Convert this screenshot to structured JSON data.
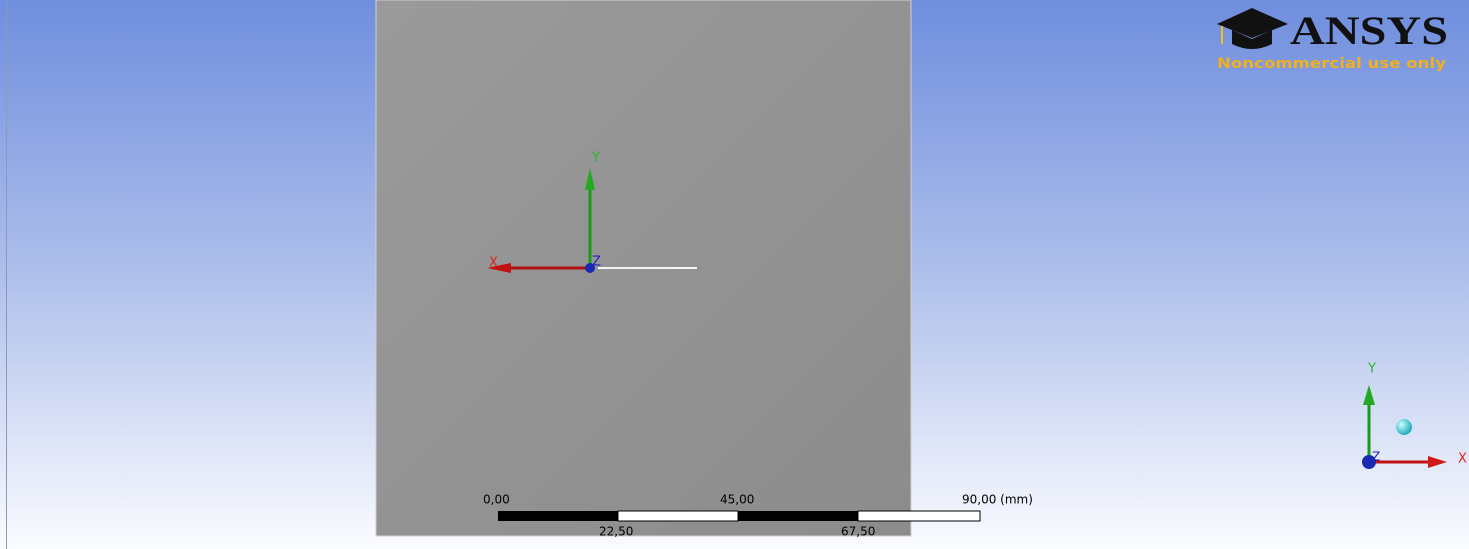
{
  "logo": {
    "brand": "ANSYS",
    "subtitle": "Noncommercial use only"
  },
  "model_triad": {
    "x": "X",
    "y": "Y",
    "z": "Z"
  },
  "corner_triad": {
    "x": "X",
    "y": "Y",
    "z": "Z"
  },
  "scale_bar": {
    "top_labels": [
      "0,00",
      "45,00",
      "90,00 (mm)"
    ],
    "bottom_labels": [
      "22,50",
      "67,50"
    ]
  }
}
